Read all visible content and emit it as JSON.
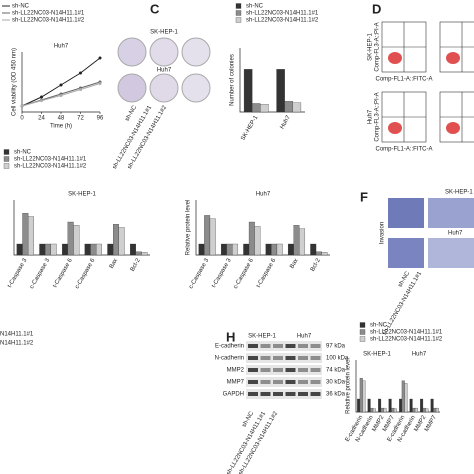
{
  "chart_data": [
    {
      "type": "line",
      "title": "Huh7",
      "y_label": "Cell viability (OD 450 nm)",
      "x_label": "Time (h)",
      "x": [
        0,
        24,
        48,
        72,
        96
      ],
      "xlim": [
        0,
        96
      ],
      "xticks": [
        0,
        24,
        48,
        72,
        96
      ],
      "ylim": [
        0,
        2
      ],
      "series": [
        {
          "name": "sh-NC",
          "color": "#222222",
          "values": [
            0.2,
            0.5,
            0.9,
            1.3,
            1.8
          ]
        },
        {
          "name": "sh-LL22NC03-N14H11.1#1",
          "color": "#666666",
          "values": [
            0.2,
            0.4,
            0.6,
            0.8,
            1.0
          ]
        },
        {
          "name": "sh-LL22NC03-N14H11.1#2",
          "color": "#aaaaaa",
          "values": [
            0.2,
            0.38,
            0.55,
            0.75,
            0.95
          ]
        }
      ]
    },
    {
      "type": "bar",
      "y_label": "Number of colonies",
      "categories": [
        "SK-HEP-1",
        "Huh7"
      ],
      "ylim": [
        0,
        150
      ],
      "series": [
        {
          "name": "sh-NC",
          "color": "#333333",
          "values": [
            100,
            100
          ]
        },
        {
          "name": "sh-LL22NC03-N14H11.1#1",
          "color": "#8c8c8c",
          "values": [
            20,
            25
          ]
        },
        {
          "name": "sh-LL22NC03-N14H11.1#2",
          "color": "#cfcfcf",
          "values": [
            18,
            22
          ]
        }
      ]
    },
    {
      "type": "bar",
      "title": "SK-HEP-1",
      "categories": [
        "t-Caspase 3",
        "c-Caspase 3",
        "t-Caspase 6",
        "c-Caspase 6",
        "Bax",
        "Bcl-2"
      ],
      "ylim": [
        0,
        5
      ],
      "series": [
        {
          "name": "sh-NC",
          "color": "#333333",
          "values": [
            1,
            1,
            1,
            1,
            1,
            1
          ]
        },
        {
          "name": "sh-LL22NC03-N14H11.1#1",
          "color": "#8c8c8c",
          "values": [
            3.8,
            1,
            3.0,
            1,
            2.8,
            0.3
          ]
        },
        {
          "name": "sh-LL22NC03-N14H11.1#2",
          "color": "#cfcfcf",
          "values": [
            3.5,
            1,
            2.7,
            1,
            2.5,
            0.25
          ]
        }
      ]
    },
    {
      "type": "bar",
      "title": "Huh7",
      "y_label": "Relative protein level",
      "categories": [
        "c-Caspase 3",
        "t-Caspase 3",
        "c-Caspase 6",
        "t-Caspase 6",
        "Bax",
        "Bcl-2"
      ],
      "ylim": [
        0,
        5
      ],
      "series": [
        {
          "name": "sh-NC",
          "color": "#333333",
          "values": [
            1,
            1,
            1,
            1,
            1,
            1
          ]
        },
        {
          "name": "sh-LL22NC03-N14H11.1#1",
          "color": "#8c8c8c",
          "values": [
            3.6,
            1,
            3.0,
            1,
            2.7,
            0.3
          ]
        },
        {
          "name": "sh-LL22NC03-N14H11.1#2",
          "color": "#cfcfcf",
          "values": [
            3.3,
            1,
            2.6,
            1,
            2.4,
            0.25
          ]
        }
      ]
    },
    {
      "type": "bar",
      "y_label": "Relative protein level",
      "categories": [
        "E-cadherin",
        "N-cadherin",
        "MMP2",
        "MMP7",
        "E-cadherin",
        "N-cadherin",
        "MMP2",
        "MMP7"
      ],
      "ylim": [
        0,
        4
      ],
      "series": [
        {
          "name": "sh-NC",
          "color": "#333333",
          "values": [
            1,
            1,
            1,
            1,
            1,
            1,
            1,
            1
          ]
        },
        {
          "name": "sh-LL22NC03-N14H11.1#1",
          "color": "#8c8c8c",
          "values": [
            2.6,
            0.3,
            0.3,
            0.3,
            2.4,
            0.3,
            0.3,
            0.3
          ]
        },
        {
          "name": "sh-LL22NC03-N14H11.1#2",
          "color": "#cfcfcf",
          "values": [
            2.4,
            0.25,
            0.3,
            0.25,
            2.2,
            0.3,
            0.25,
            0.3
          ]
        }
      ]
    }
  ],
  "panels": {
    "c": {
      "label": "C",
      "rows": [
        "SK-HEP-1",
        "Huh7"
      ],
      "columns": [
        "sh-NC",
        "sh-LL22NC03-N14H11.1#1",
        "sh-LL22NC03-N14H11.1#2"
      ]
    },
    "d": {
      "label": "D",
      "rows": [
        "SK-HEP-1",
        "Huh7"
      ],
      "y_axis": "Comp-FL3-A::PI-A",
      "x_axis": "Comp-FL1-A::FITC-A"
    },
    "f": {
      "label": "F",
      "title": "SK-HEP-1",
      "row": "Invasion",
      "subtitle": "Huh7",
      "columns": [
        "sh-NC",
        "sh-LL22NC03-N14H11.1#1"
      ]
    },
    "g_legend": [
      "N14H11.1#1",
      "N14H11.1#2"
    ],
    "h": {
      "label": "H",
      "groups": [
        "SK-HEP-1",
        "Huh7"
      ],
      "rows": [
        "E-cadherin",
        "N-cadherin",
        "MMP2",
        "MMP7",
        "GAPDH"
      ],
      "sizes": [
        "97 kDa",
        "100 kDa",
        "74 kDa",
        "30 kDa",
        "36 kDa"
      ],
      "columns": [
        "sh-NC",
        "sh-LL22NC03-N14H11.1#1",
        "sh-LL22NC03-N14H11.1#2"
      ],
      "chart_groups": [
        "SK-HEP-1",
        "Huh7"
      ]
    }
  }
}
